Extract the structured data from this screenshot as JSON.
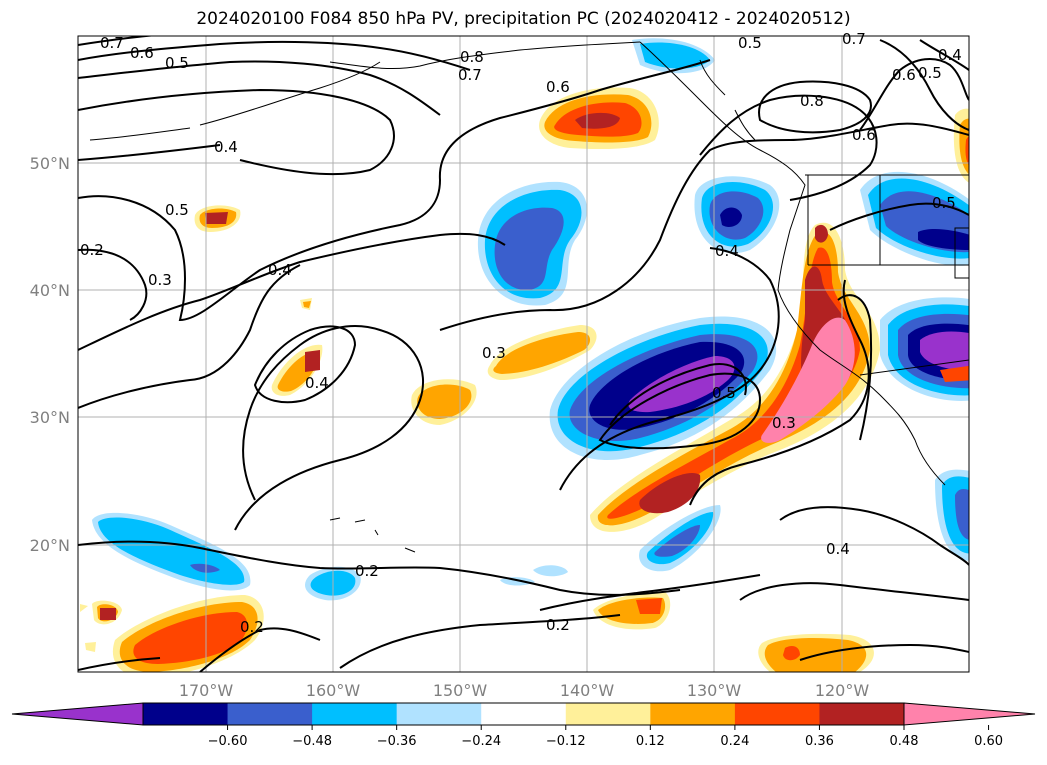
{
  "title": "2024020100 F084 850 hPa PV, precipitation PC (2024020412 - 2024020512)",
  "map": {
    "lat_labels": [
      "50°N",
      "40°N",
      "30°N",
      "20°N"
    ],
    "lon_labels": [
      "170°W",
      "160°W",
      "150°W",
      "140°W",
      "130°W",
      "120°W"
    ],
    "contour_labels": [
      "0.7",
      "0.6",
      "0.5",
      "0.8",
      "0.7",
      "0.6",
      "0.5",
      "0.7",
      "0.6",
      "0.5",
      "0.4",
      "0.8",
      "0.6",
      "0.4",
      "0.5",
      "0.2",
      "0.3",
      "0.4",
      "0.4",
      "0.3",
      "0.5",
      "0.3",
      "0.4",
      "0.2",
      "0.2",
      "0.2",
      "0.4",
      "0.5"
    ]
  },
  "colorbar": {
    "ticks": [
      "−0.60",
      "−0.48",
      "−0.36",
      "−0.24",
      "−0.12",
      "0.12",
      "0.24",
      "0.36",
      "0.48",
      "0.60"
    ],
    "colors": [
      "#9932cc",
      "#00008b",
      "#3a5fcd",
      "#00bfff",
      "#b0e2ff",
      "#ffffff",
      "#fff09a",
      "#ffa500",
      "#ff4500",
      "#b22222",
      "#ff82ab"
    ]
  }
}
